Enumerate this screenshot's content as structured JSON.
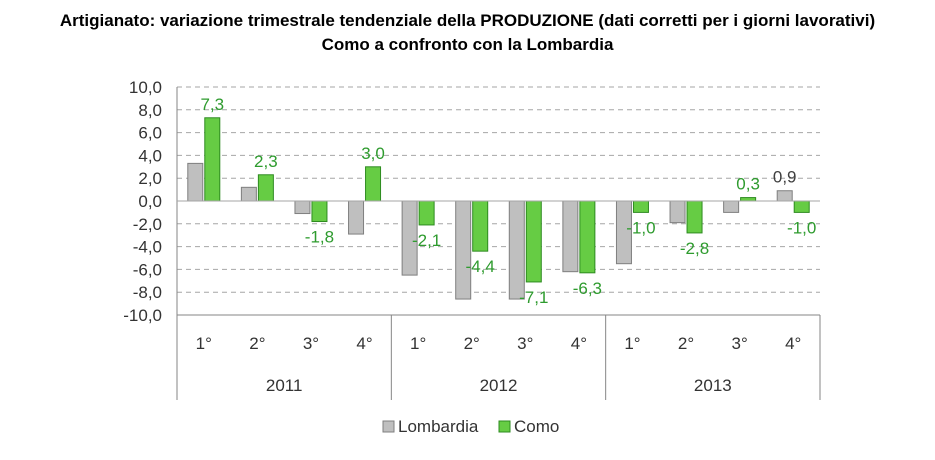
{
  "chart_data": {
    "type": "bar",
    "title": "Artigianato: variazione trimestrale tendenziale della PRODUZIONE (dati corretti per i giorni lavorativi)",
    "subtitle": "Como a confronto con la Lombardia",
    "categories": [
      "1°",
      "2°",
      "3°",
      "4°",
      "1°",
      "2°",
      "3°",
      "4°",
      "1°",
      "2°",
      "3°",
      "4°"
    ],
    "groups": [
      {
        "label": "2011",
        "span": 4
      },
      {
        "label": "2012",
        "span": 4
      },
      {
        "label": "2013",
        "span": 4
      }
    ],
    "series": [
      {
        "name": "Lombardia",
        "color": "#bfbfbf",
        "stroke": "#7f7f7f",
        "values": [
          3.3,
          1.2,
          -1.1,
          -2.9,
          -6.5,
          -8.6,
          -8.6,
          -6.2,
          -5.5,
          -1.9,
          -1.0,
          0.9
        ],
        "labels": [
          null,
          null,
          null,
          null,
          null,
          null,
          null,
          null,
          null,
          null,
          null,
          "0,9"
        ],
        "label_color": "#404040"
      },
      {
        "name": "Como",
        "color": "#66cc44",
        "stroke": "#2e8b20",
        "values": [
          7.3,
          2.3,
          -1.8,
          3.0,
          -2.1,
          -4.4,
          -7.1,
          -6.3,
          -1.0,
          -2.8,
          0.3,
          -1.0
        ],
        "labels": [
          "7,3",
          "2,3",
          "-1,8",
          "3,0",
          "-2,1",
          "-4,4",
          "-7,1",
          "-6,3",
          "-1,0",
          "-2,8",
          "0,3",
          "-1,0"
        ],
        "label_color": "#2e9b2e"
      }
    ],
    "ylim": [
      -10,
      10
    ],
    "yticks": [
      "10,0",
      "8,0",
      "6,0",
      "4,0",
      "2,0",
      "0,0",
      "-2,0",
      "-4,0",
      "-6,0",
      "-8,0",
      "-10,0"
    ],
    "ytick_values": [
      10,
      8,
      6,
      4,
      2,
      0,
      -2,
      -4,
      -6,
      -8,
      -10
    ],
    "grid": true,
    "legend": "bottom-center"
  }
}
